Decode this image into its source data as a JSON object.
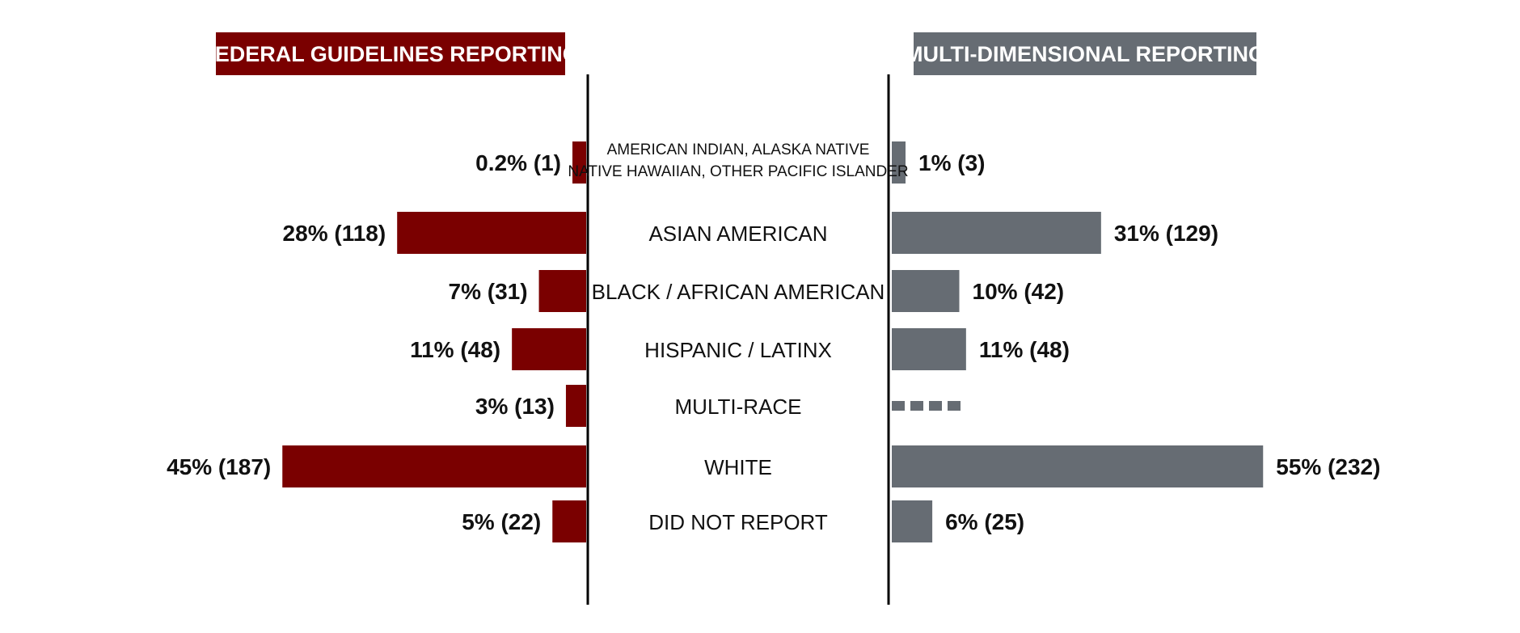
{
  "colors": {
    "federal": "#7a0000",
    "multi": "#666c73",
    "axis": "#000000",
    "header_text": "#ffffff"
  },
  "chart_data": {
    "type": "bar",
    "layout": "butterfly",
    "categories": [
      [
        "AMERICAN INDIAN, ALASKA NATIVE",
        "NATIVE HAWAIIAN, OTHER PACIFIC ISLANDER"
      ],
      [
        "ASIAN AMERICAN"
      ],
      [
        "BLACK / AFRICAN AMERICAN"
      ],
      [
        "HISPANIC / LATINX"
      ],
      [
        "MULTI-RACE"
      ],
      [
        "WHITE"
      ],
      [
        "DID NOT REPORT"
      ]
    ],
    "series": [
      {
        "name": "FEDERAL GUIDELINES REPORTING",
        "side": "left",
        "color": "#7a0000",
        "values": [
          0.2,
          28,
          7,
          11,
          3,
          45,
          5
        ],
        "counts": [
          1,
          118,
          31,
          48,
          13,
          187,
          22
        ],
        "labels": [
          "0.2% (1)",
          "28% (118)",
          "7% (31)",
          "11% (48)",
          "3% (13)",
          "45% (187)",
          "5% (22)"
        ]
      },
      {
        "name": "MULTI-DIMENSIONAL REPORTING",
        "side": "right",
        "color": "#666c73",
        "values": [
          1,
          31,
          10,
          11,
          null,
          55,
          6
        ],
        "counts": [
          3,
          129,
          42,
          48,
          null,
          232,
          25
        ],
        "labels": [
          "1% (3)",
          "31% (129)",
          "10% (42)",
          "11% (48)",
          "",
          "55% (232)",
          "6% (25)"
        ],
        "not_applicable_marker": "dashed"
      }
    ],
    "value_unit": "%",
    "grid": false,
    "legend": "none"
  }
}
